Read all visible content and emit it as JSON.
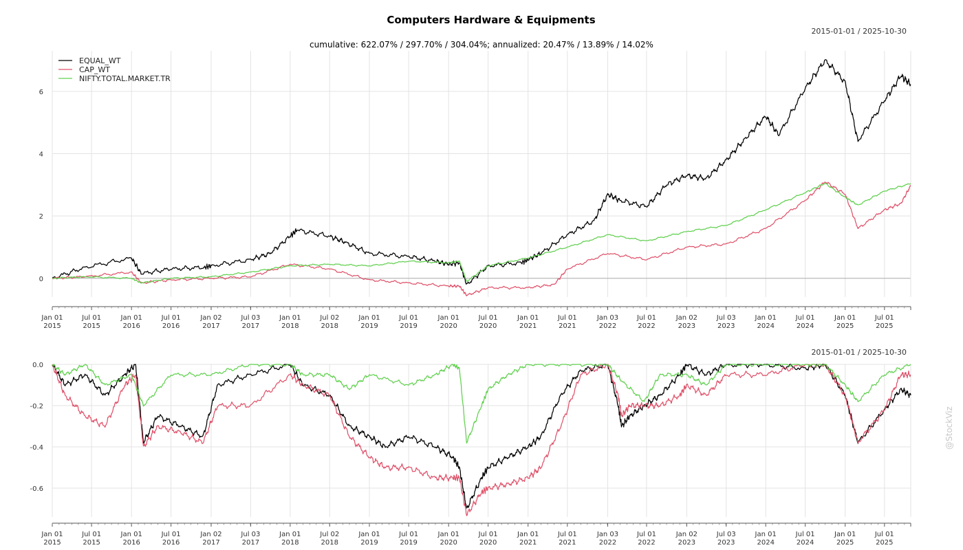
{
  "title": "Computers Hardware & Equipments",
  "subtitle": "cumulative: 622.07% / 297.70% / 304.04%; annualized: 20.47% / 13.89% / 14.02%",
  "date_range_top": "2015-01-01 / 2025-10-30",
  "date_range_bottom": "2015-01-01 / 2025-10-30",
  "watermark": "@StockViz",
  "colors": {
    "EQUAL_WT": "#000000",
    "CAP_WT": "#DF536B",
    "NIFTY.TOTAL.MARKET.TR": "#61D04F"
  },
  "x_ticks": [
    {
      "date": "2015-01-01",
      "l1": "Jan 01",
      "l2": "2015"
    },
    {
      "date": "2015-07-01",
      "l1": "Jul 01",
      "l2": "2015"
    },
    {
      "date": "2016-01-01",
      "l1": "Jan 01",
      "l2": "2016"
    },
    {
      "date": "2016-07-01",
      "l1": "Jul 01",
      "l2": "2016"
    },
    {
      "date": "2017-01-02",
      "l1": "Jan 02",
      "l2": "2017"
    },
    {
      "date": "2017-07-03",
      "l1": "Jul 03",
      "l2": "2017"
    },
    {
      "date": "2018-01-01",
      "l1": "Jan 01",
      "l2": "2018"
    },
    {
      "date": "2018-07-02",
      "l1": "Jul 02",
      "l2": "2018"
    },
    {
      "date": "2019-01-01",
      "l1": "Jan 01",
      "l2": "2019"
    },
    {
      "date": "2019-07-01",
      "l1": "Jul 01",
      "l2": "2019"
    },
    {
      "date": "2020-01-01",
      "l1": "Jan 01",
      "l2": "2020"
    },
    {
      "date": "2020-07-01",
      "l1": "Jul 01",
      "l2": "2020"
    },
    {
      "date": "2021-01-01",
      "l1": "Jan 01",
      "l2": "2021"
    },
    {
      "date": "2021-07-01",
      "l1": "Jul 01",
      "l2": "2021"
    },
    {
      "date": "2022-01-03",
      "l1": "Jan 03",
      "l2": "2022"
    },
    {
      "date": "2022-07-01",
      "l1": "Jul 01",
      "l2": "2022"
    },
    {
      "date": "2023-01-02",
      "l1": "Jan 02",
      "l2": "2023"
    },
    {
      "date": "2023-07-03",
      "l1": "Jul 03",
      "l2": "2023"
    },
    {
      "date": "2024-01-01",
      "l1": "Jan 01",
      "l2": "2024"
    },
    {
      "date": "2024-07-01",
      "l1": "Jul 01",
      "l2": "2024"
    },
    {
      "date": "2025-01-01",
      "l1": "Jan 01",
      "l2": "2025"
    },
    {
      "date": "2025-07-01",
      "l1": "Jul 01",
      "l2": "2025"
    }
  ],
  "chart_data": [
    {
      "type": "line",
      "panel": "cumulative-returns",
      "xlim": [
        "2015-01-01",
        "2025-10-30"
      ],
      "ylim": [
        -0.6,
        7.3
      ],
      "y_ticks": [
        0,
        2,
        4,
        6
      ],
      "y_tick_labels": [
        "0",
        "2",
        "4",
        "6"
      ],
      "legend_position": "top-left",
      "grid": true,
      "reference_line": 0,
      "series": [
        {
          "name": "EQUAL_WT",
          "color": "#000000",
          "x": [
            "2015-01-01",
            "2015-06-01",
            "2016-01-01",
            "2016-02-15",
            "2016-07-01",
            "2016-12-01",
            "2017-01-02",
            "2017-07-03",
            "2017-10-01",
            "2018-01-01",
            "2018-02-01",
            "2018-07-02",
            "2018-09-15",
            "2019-01-01",
            "2019-07-01",
            "2019-11-01",
            "2020-01-01",
            "2020-02-20",
            "2020-03-24",
            "2020-07-01",
            "2020-12-01",
            "2021-01-01",
            "2021-03-01",
            "2021-07-01",
            "2021-11-01",
            "2022-01-03",
            "2022-03-01",
            "2022-07-01",
            "2022-10-01",
            "2023-01-02",
            "2023-04-01",
            "2023-07-03",
            "2023-10-01",
            "2024-01-01",
            "2024-03-01",
            "2024-07-01",
            "2024-10-01",
            "2025-01-01",
            "2025-03-01",
            "2025-07-01",
            "2025-09-15",
            "2025-10-30"
          ],
          "y": [
            0.0,
            0.35,
            0.65,
            0.15,
            0.3,
            0.35,
            0.4,
            0.6,
            0.8,
            1.35,
            1.55,
            1.35,
            1.15,
            0.8,
            0.7,
            0.55,
            0.45,
            0.5,
            -0.2,
            0.4,
            0.5,
            0.6,
            0.8,
            1.4,
            1.85,
            2.7,
            2.5,
            2.3,
            3.0,
            3.3,
            3.2,
            3.8,
            4.5,
            5.2,
            4.6,
            6.1,
            7.0,
            6.3,
            4.4,
            5.7,
            6.5,
            6.22
          ]
        },
        {
          "name": "CAP_WT",
          "color": "#DF536B",
          "x": [
            "2015-01-01",
            "2015-06-01",
            "2016-01-01",
            "2016-02-15",
            "2016-07-01",
            "2017-01-02",
            "2017-07-03",
            "2018-01-01",
            "2018-07-02",
            "2019-01-01",
            "2019-07-01",
            "2020-01-01",
            "2020-02-20",
            "2020-03-24",
            "2020-07-01",
            "2021-01-01",
            "2021-05-01",
            "2021-07-01",
            "2022-01-03",
            "2022-07-01",
            "2023-01-02",
            "2023-07-03",
            "2024-01-01",
            "2024-07-01",
            "2024-10-01",
            "2025-01-01",
            "2025-03-01",
            "2025-07-01",
            "2025-09-15",
            "2025-10-30"
          ],
          "y": [
            0.0,
            0.05,
            0.2,
            -0.15,
            -0.05,
            0.0,
            0.05,
            0.45,
            0.3,
            -0.05,
            -0.15,
            -0.25,
            -0.25,
            -0.55,
            -0.3,
            -0.3,
            -0.2,
            0.3,
            0.8,
            0.6,
            1.0,
            1.1,
            1.6,
            2.5,
            3.1,
            2.7,
            1.6,
            2.2,
            2.4,
            2.98
          ]
        },
        {
          "name": "NIFTY.TOTAL.MARKET.TR",
          "color": "#61D04F",
          "x": [
            "2015-01-01",
            "2015-06-01",
            "2016-01-01",
            "2016-02-15",
            "2016-07-01",
            "2017-01-02",
            "2017-07-03",
            "2018-01-01",
            "2018-07-02",
            "2019-01-01",
            "2019-07-01",
            "2020-01-01",
            "2020-02-20",
            "2020-03-24",
            "2020-07-01",
            "2021-01-01",
            "2021-07-01",
            "2022-01-03",
            "2022-07-01",
            "2023-01-02",
            "2023-07-03",
            "2024-01-01",
            "2024-07-01",
            "2024-10-01",
            "2025-01-01",
            "2025-03-01",
            "2025-07-01",
            "2025-10-30"
          ],
          "y": [
            0.0,
            0.05,
            0.0,
            -0.15,
            0.0,
            0.05,
            0.2,
            0.4,
            0.45,
            0.4,
            0.55,
            0.5,
            0.55,
            -0.1,
            0.4,
            0.65,
            1.0,
            1.4,
            1.2,
            1.5,
            1.7,
            2.2,
            2.75,
            3.05,
            2.6,
            2.35,
            2.8,
            3.04
          ]
        }
      ]
    },
    {
      "type": "line",
      "panel": "drawdowns",
      "xlim": [
        "2015-01-01",
        "2025-10-30"
      ],
      "ylim": [
        -0.74,
        0.0
      ],
      "y_ticks": [
        0.0,
        -0.2,
        -0.4,
        -0.6
      ],
      "y_tick_labels": [
        "0.0",
        "-0.2",
        "-0.4",
        "-0.6"
      ],
      "grid": true,
      "series": [
        {
          "name": "EQUAL_WT",
          "color": "#000000",
          "x": [
            "2015-01-01",
            "2015-03-01",
            "2015-06-01",
            "2015-09-01",
            "2015-12-01",
            "2016-01-20",
            "2016-02-25",
            "2016-05-01",
            "2016-08-15",
            "2016-11-25",
            "2017-02-01",
            "2017-07-03",
            "2018-01-01",
            "2018-03-01",
            "2018-07-02",
            "2018-10-01",
            "2019-01-01",
            "2019-03-15",
            "2019-07-01",
            "2019-11-01",
            "2020-01-20",
            "2020-02-20",
            "2020-03-24",
            "2020-06-01",
            "2020-07-01",
            "2020-10-01",
            "2021-01-01",
            "2021-03-01",
            "2021-06-01",
            "2021-09-01",
            "2022-01-03",
            "2022-02-20",
            "2022-03-08",
            "2022-04-15",
            "2022-06-20",
            "2022-09-01",
            "2022-12-01",
            "2023-01-02",
            "2023-04-01",
            "2023-07-03",
            "2024-01-01",
            "2024-07-01",
            "2024-10-01",
            "2025-01-01",
            "2025-03-01",
            "2025-07-01",
            "2025-09-15",
            "2025-10-30"
          ],
          "y": [
            0.0,
            -0.1,
            -0.05,
            -0.15,
            -0.05,
            0.0,
            -0.38,
            -0.25,
            -0.3,
            -0.35,
            -0.1,
            -0.05,
            0.0,
            -0.1,
            -0.15,
            -0.3,
            -0.35,
            -0.4,
            -0.35,
            -0.4,
            -0.45,
            -0.5,
            -0.7,
            -0.55,
            -0.5,
            -0.45,
            -0.4,
            -0.35,
            -0.15,
            -0.03,
            0.0,
            -0.2,
            -0.3,
            -0.25,
            -0.2,
            -0.15,
            -0.05,
            0.0,
            -0.05,
            0.0,
            0.0,
            -0.02,
            0.0,
            -0.15,
            -0.38,
            -0.22,
            -0.12,
            -0.15
          ]
        },
        {
          "name": "CAP_WT",
          "color": "#DF536B",
          "x": [
            "2015-01-01",
            "2015-03-01",
            "2015-06-01",
            "2015-09-01",
            "2015-12-01",
            "2016-01-20",
            "2016-02-25",
            "2016-05-01",
            "2016-08-15",
            "2016-11-25",
            "2017-02-01",
            "2017-07-03",
            "2018-01-01",
            "2018-03-01",
            "2018-07-02",
            "2018-10-01",
            "2019-01-01",
            "2019-03-15",
            "2019-07-01",
            "2019-11-01",
            "2020-01-20",
            "2020-02-20",
            "2020-03-24",
            "2020-06-01",
            "2020-07-01",
            "2020-10-01",
            "2021-01-01",
            "2021-03-01",
            "2021-06-01",
            "2021-09-01",
            "2022-01-03",
            "2022-02-20",
            "2022-03-08",
            "2022-04-15",
            "2022-06-20",
            "2022-09-01",
            "2022-12-01",
            "2023-01-02",
            "2023-04-01",
            "2023-07-03",
            "2024-01-01",
            "2024-07-01",
            "2024-10-01",
            "2025-01-01",
            "2025-03-01",
            "2025-07-01",
            "2025-09-15",
            "2025-10-30"
          ],
          "y": [
            0.0,
            -0.15,
            -0.25,
            -0.3,
            -0.1,
            -0.05,
            -0.4,
            -0.3,
            -0.33,
            -0.38,
            -0.2,
            -0.2,
            -0.05,
            -0.1,
            -0.15,
            -0.35,
            -0.45,
            -0.5,
            -0.5,
            -0.55,
            -0.55,
            -0.55,
            -0.73,
            -0.62,
            -0.6,
            -0.58,
            -0.55,
            -0.5,
            -0.3,
            -0.05,
            0.0,
            -0.15,
            -0.25,
            -0.2,
            -0.2,
            -0.2,
            -0.15,
            -0.1,
            -0.15,
            -0.05,
            -0.05,
            0.0,
            0.0,
            -0.15,
            -0.38,
            -0.22,
            -0.05,
            -0.05
          ]
        },
        {
          "name": "NIFTY.TOTAL.MARKET.TR",
          "color": "#61D04F",
          "x": [
            "2015-01-01",
            "2015-03-01",
            "2015-06-01",
            "2015-09-01",
            "2016-01-01",
            "2016-02-25",
            "2016-07-01",
            "2017-01-02",
            "2017-07-03",
            "2018-01-01",
            "2018-03-01",
            "2018-07-02",
            "2018-10-01",
            "2019-01-01",
            "2019-07-01",
            "2019-11-01",
            "2020-01-20",
            "2020-02-20",
            "2020-03-24",
            "2020-06-01",
            "2020-07-01",
            "2020-10-01",
            "2021-01-01",
            "2021-07-01",
            "2022-01-03",
            "2022-03-08",
            "2022-06-20",
            "2022-09-01",
            "2023-01-02",
            "2023-04-01",
            "2023-07-03",
            "2024-01-01",
            "2024-07-01",
            "2024-10-01",
            "2025-01-01",
            "2025-03-01",
            "2025-07-01",
            "2025-10-30"
          ],
          "y": [
            0.0,
            -0.05,
            0.0,
            -0.1,
            -0.05,
            -0.2,
            -0.05,
            -0.05,
            0.0,
            0.0,
            -0.05,
            -0.05,
            -0.12,
            -0.05,
            -0.1,
            -0.05,
            0.0,
            -0.02,
            -0.38,
            -0.2,
            -0.12,
            -0.05,
            0.0,
            0.0,
            0.0,
            -0.08,
            -0.18,
            -0.05,
            -0.05,
            -0.1,
            0.0,
            0.0,
            0.0,
            0.0,
            -0.1,
            -0.18,
            -0.05,
            0.0
          ]
        }
      ]
    }
  ]
}
